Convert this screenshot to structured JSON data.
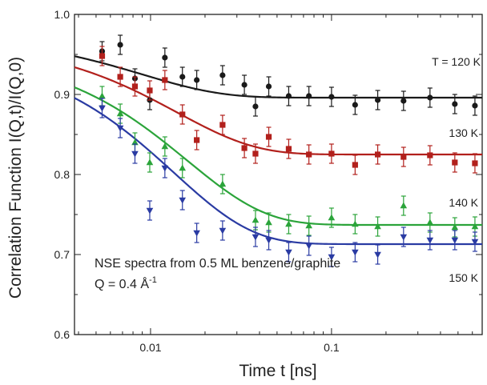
{
  "chart_data": {
    "type": "scatter",
    "title": "",
    "xlabel": "Time t [ns]",
    "ylabel": "Correlation Function I(Q,t)/I(Q,0)",
    "x_scale": "log",
    "xlim": [
      0.0038,
      0.68
    ],
    "ylim": [
      0.6,
      1.0
    ],
    "x_ticks": [
      {
        "value": 0.01,
        "label": "0.01"
      },
      {
        "value": 0.1,
        "label": "0.1"
      }
    ],
    "y_ticks": [
      {
        "value": 0.6,
        "label": "0.6"
      },
      {
        "value": 0.7,
        "label": "0.7"
      },
      {
        "value": 0.8,
        "label": "0.8"
      },
      {
        "value": 0.9,
        "label": "0.9"
      },
      {
        "value": 1.0,
        "label": "1.0"
      }
    ],
    "grid": false,
    "annotations": [
      {
        "text": "NSE spectra from 0.5 ML benzene/graphite"
      },
      {
        "text": "Q = 0.4 Å",
        "superscript": "-1"
      }
    ],
    "series": [
      {
        "name": "T = 120 K",
        "color": "#1a1a1a",
        "marker": "circle",
        "fit": {
          "y0": 0.975,
          "yinf": 0.896,
          "tau": 0.009
        },
        "points": [
          {
            "x": 0.0054,
            "y": 0.954,
            "err": 0.012
          },
          {
            "x": 0.0068,
            "y": 0.962,
            "err": 0.012
          },
          {
            "x": 0.0082,
            "y": 0.92,
            "err": 0.012
          },
          {
            "x": 0.0099,
            "y": 0.893,
            "err": 0.012
          },
          {
            "x": 0.012,
            "y": 0.946,
            "err": 0.012
          },
          {
            "x": 0.015,
            "y": 0.922,
            "err": 0.012
          },
          {
            "x": 0.018,
            "y": 0.918,
            "err": 0.012
          },
          {
            "x": 0.025,
            "y": 0.924,
            "err": 0.012
          },
          {
            "x": 0.033,
            "y": 0.912,
            "err": 0.012
          },
          {
            "x": 0.038,
            "y": 0.885,
            "err": 0.012
          },
          {
            "x": 0.045,
            "y": 0.91,
            "err": 0.012
          },
          {
            "x": 0.058,
            "y": 0.898,
            "err": 0.012
          },
          {
            "x": 0.075,
            "y": 0.898,
            "err": 0.012
          },
          {
            "x": 0.1,
            "y": 0.897,
            "err": 0.012
          },
          {
            "x": 0.135,
            "y": 0.887,
            "err": 0.012
          },
          {
            "x": 0.18,
            "y": 0.893,
            "err": 0.012
          },
          {
            "x": 0.25,
            "y": 0.892,
            "err": 0.012
          },
          {
            "x": 0.35,
            "y": 0.896,
            "err": 0.012
          },
          {
            "x": 0.48,
            "y": 0.888,
            "err": 0.012
          },
          {
            "x": 0.62,
            "y": 0.886,
            "err": 0.012
          }
        ]
      },
      {
        "name": "130 K",
        "color": "#b2201c",
        "marker": "square",
        "fit": {
          "y0": 0.968,
          "yinf": 0.825,
          "tau": 0.014
        },
        "points": [
          {
            "x": 0.0054,
            "y": 0.948,
            "err": 0.012
          },
          {
            "x": 0.0068,
            "y": 0.922,
            "err": 0.012
          },
          {
            "x": 0.0082,
            "y": 0.91,
            "err": 0.012
          },
          {
            "x": 0.0099,
            "y": 0.905,
            "err": 0.012
          },
          {
            "x": 0.012,
            "y": 0.918,
            "err": 0.012
          },
          {
            "x": 0.015,
            "y": 0.875,
            "err": 0.012
          },
          {
            "x": 0.018,
            "y": 0.843,
            "err": 0.012
          },
          {
            "x": 0.025,
            "y": 0.862,
            "err": 0.012
          },
          {
            "x": 0.033,
            "y": 0.833,
            "err": 0.012
          },
          {
            "x": 0.038,
            "y": 0.826,
            "err": 0.012
          },
          {
            "x": 0.045,
            "y": 0.847,
            "err": 0.012
          },
          {
            "x": 0.058,
            "y": 0.832,
            "err": 0.012
          },
          {
            "x": 0.075,
            "y": 0.825,
            "err": 0.012
          },
          {
            "x": 0.1,
            "y": 0.826,
            "err": 0.012
          },
          {
            "x": 0.135,
            "y": 0.812,
            "err": 0.012
          },
          {
            "x": 0.18,
            "y": 0.825,
            "err": 0.012
          },
          {
            "x": 0.25,
            "y": 0.822,
            "err": 0.012
          },
          {
            "x": 0.35,
            "y": 0.824,
            "err": 0.012
          },
          {
            "x": 0.48,
            "y": 0.815,
            "err": 0.012
          },
          {
            "x": 0.62,
            "y": 0.814,
            "err": 0.012
          }
        ]
      },
      {
        "name": "140 K",
        "color": "#2ba43a",
        "marker": "triangle-up",
        "fit": {
          "y0": 0.955,
          "yinf": 0.737,
          "tau": 0.016
        },
        "points": [
          {
            "x": 0.0054,
            "y": 0.898,
            "err": 0.012
          },
          {
            "x": 0.0068,
            "y": 0.876,
            "err": 0.012
          },
          {
            "x": 0.0082,
            "y": 0.84,
            "err": 0.012
          },
          {
            "x": 0.0099,
            "y": 0.815,
            "err": 0.012
          },
          {
            "x": 0.012,
            "y": 0.835,
            "err": 0.012
          },
          {
            "x": 0.015,
            "y": 0.808,
            "err": 0.012
          },
          {
            "x": 0.025,
            "y": 0.788,
            "err": 0.012
          },
          {
            "x": 0.038,
            "y": 0.743,
            "err": 0.012
          },
          {
            "x": 0.045,
            "y": 0.74,
            "err": 0.012
          },
          {
            "x": 0.058,
            "y": 0.738,
            "err": 0.012
          },
          {
            "x": 0.075,
            "y": 0.736,
            "err": 0.012
          },
          {
            "x": 0.1,
            "y": 0.746,
            "err": 0.012
          },
          {
            "x": 0.135,
            "y": 0.738,
            "err": 0.012
          },
          {
            "x": 0.18,
            "y": 0.735,
            "err": 0.012
          },
          {
            "x": 0.25,
            "y": 0.761,
            "err": 0.012
          },
          {
            "x": 0.35,
            "y": 0.74,
            "err": 0.012
          },
          {
            "x": 0.48,
            "y": 0.734,
            "err": 0.012
          },
          {
            "x": 0.62,
            "y": 0.735,
            "err": 0.012
          }
        ]
      },
      {
        "name": "150 K",
        "color": "#2a3ba3",
        "marker": "triangle-down",
        "fit": {
          "y0": 0.955,
          "yinf": 0.713,
          "tau": 0.0135
        },
        "points": [
          {
            "x": 0.0054,
            "y": 0.883,
            "err": 0.012
          },
          {
            "x": 0.0068,
            "y": 0.858,
            "err": 0.012
          },
          {
            "x": 0.0082,
            "y": 0.826,
            "err": 0.012
          },
          {
            "x": 0.0099,
            "y": 0.755,
            "err": 0.012
          },
          {
            "x": 0.012,
            "y": 0.808,
            "err": 0.012
          },
          {
            "x": 0.015,
            "y": 0.768,
            "err": 0.012
          },
          {
            "x": 0.018,
            "y": 0.727,
            "err": 0.012
          },
          {
            "x": 0.025,
            "y": 0.73,
            "err": 0.012
          },
          {
            "x": 0.038,
            "y": 0.722,
            "err": 0.012
          },
          {
            "x": 0.045,
            "y": 0.718,
            "err": 0.012
          },
          {
            "x": 0.058,
            "y": 0.703,
            "err": 0.012
          },
          {
            "x": 0.075,
            "y": 0.711,
            "err": 0.012
          },
          {
            "x": 0.1,
            "y": 0.697,
            "err": 0.012
          },
          {
            "x": 0.135,
            "y": 0.703,
            "err": 0.012
          },
          {
            "x": 0.18,
            "y": 0.7,
            "err": 0.012
          },
          {
            "x": 0.25,
            "y": 0.722,
            "err": 0.012
          },
          {
            "x": 0.35,
            "y": 0.718,
            "err": 0.012
          },
          {
            "x": 0.48,
            "y": 0.718,
            "err": 0.012
          },
          {
            "x": 0.62,
            "y": 0.716,
            "err": 0.012
          }
        ]
      }
    ]
  }
}
